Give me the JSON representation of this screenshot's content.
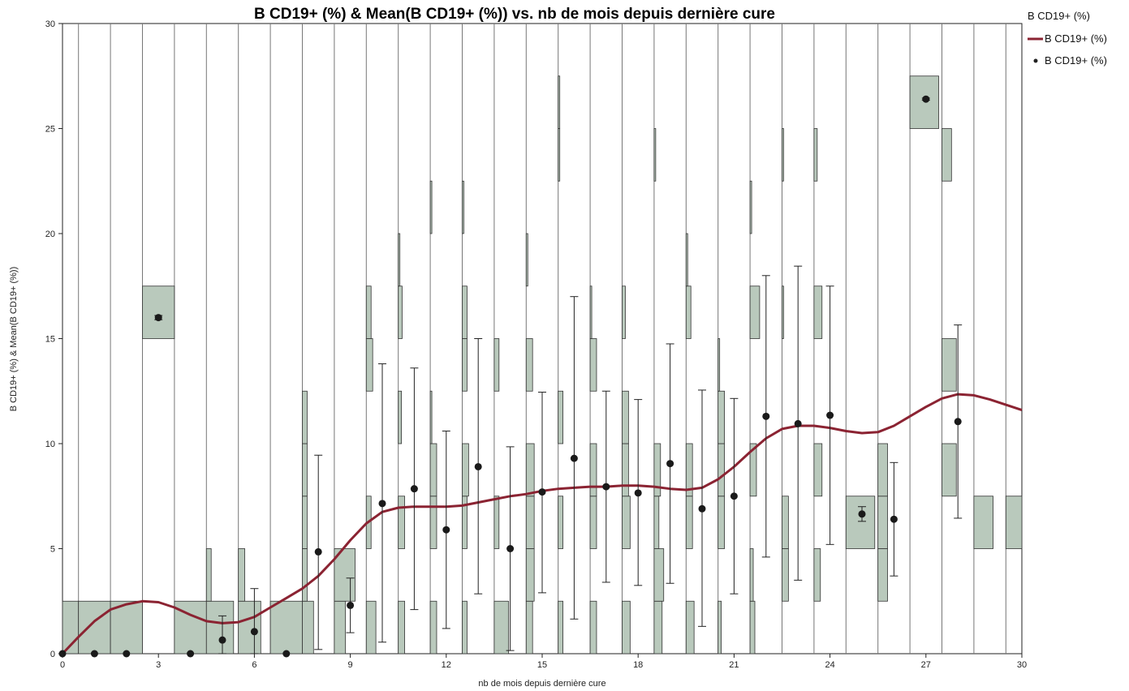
{
  "chart_data": {
    "type": "line",
    "title": "B CD19+ (%) & Mean(B CD19+ (%)) vs. nb de mois depuis dernière cure",
    "xlabel": "nb de mois depuis dernière cure",
    "ylabel": "B CD19+ (%) & Mean(B CD19+ (%))",
    "xlim": [
      0,
      30
    ],
    "ylim": [
      0,
      30
    ],
    "x_ticks": [
      "0",
      "3",
      "6",
      "9",
      "12",
      "15",
      "18",
      "21",
      "24",
      "27",
      "30"
    ],
    "y_ticks": [
      "0",
      "5",
      "10",
      "15",
      "20",
      "25",
      "30"
    ],
    "legend": {
      "title": "B CD19+ (%)",
      "items": [
        {
          "label": "B CD19+ (%)",
          "marker": "line",
          "color": "#8b2332"
        },
        {
          "label": "B CD19+ (%)",
          "marker": "dot",
          "color": "#222222"
        }
      ]
    },
    "colors": {
      "bar_fill": "#b9c9bc",
      "bar_stroke": "#333333",
      "smoother": "#8b2332",
      "mean": "#1a1a1a"
    },
    "histogram_bins": [
      {
        "x": 0,
        "bins": [
          [
            0,
            2.5,
            1
          ]
        ]
      },
      {
        "x": 1,
        "bins": [
          [
            0,
            2.5,
            1
          ]
        ]
      },
      {
        "x": 2,
        "bins": [
          [
            0,
            2.5,
            1
          ]
        ]
      },
      {
        "x": 3,
        "bins": [
          [
            15,
            17.5,
            1
          ]
        ]
      },
      {
        "x": 4,
        "bins": [
          [
            0,
            2.5,
            1
          ]
        ]
      },
      {
        "x": 5,
        "bins": [
          [
            0,
            2.5,
            0.85
          ],
          [
            2.5,
            5,
            0.15
          ]
        ]
      },
      {
        "x": 6,
        "bins": [
          [
            0,
            2.5,
            0.7
          ],
          [
            2.5,
            5,
            0.2
          ]
        ]
      },
      {
        "x": 7,
        "bins": [
          [
            0,
            2.5,
            1
          ]
        ]
      },
      {
        "x": 8,
        "bins": [
          [
            0,
            2.5,
            0.35
          ],
          [
            2.5,
            5,
            0.15
          ],
          [
            5,
            7.5,
            0.15
          ],
          [
            7.5,
            10,
            0.15
          ],
          [
            10,
            12.5,
            0.15
          ]
        ]
      },
      {
        "x": 9,
        "bins": [
          [
            0,
            2.5,
            0.35
          ],
          [
            2.5,
            5,
            0.65
          ]
        ]
      },
      {
        "x": 10,
        "bins": [
          [
            0,
            2.5,
            0.3
          ],
          [
            5,
            7.5,
            0.15
          ],
          [
            12.5,
            15,
            0.2
          ],
          [
            15,
            17.5,
            0.15
          ]
        ]
      },
      {
        "x": 11,
        "bins": [
          [
            0,
            2.5,
            0.2
          ],
          [
            5,
            7.5,
            0.2
          ],
          [
            10,
            12.5,
            0.1
          ],
          [
            15,
            17.5,
            0.12
          ],
          [
            17.5,
            20,
            0.05
          ]
        ]
      },
      {
        "x": 12,
        "bins": [
          [
            0,
            2.5,
            0.2
          ],
          [
            5,
            7.5,
            0.2
          ],
          [
            7.5,
            10,
            0.2
          ],
          [
            10,
            12.5,
            0.05
          ],
          [
            20,
            22.5,
            0.05
          ]
        ]
      },
      {
        "x": 13,
        "bins": [
          [
            0,
            2.5,
            0.15
          ],
          [
            5,
            7.5,
            0.15
          ],
          [
            7.5,
            10,
            0.2
          ],
          [
            12.5,
            15,
            0.15
          ],
          [
            15,
            17.5,
            0.15
          ],
          [
            20,
            22.5,
            0.05
          ]
        ]
      },
      {
        "x": 14,
        "bins": [
          [
            0,
            2.5,
            0.45
          ],
          [
            5,
            7.5,
            0.15
          ],
          [
            12.5,
            15,
            0.15
          ]
        ]
      },
      {
        "x": 15,
        "bins": [
          [
            0,
            2.5,
            0.2
          ],
          [
            2.5,
            5,
            0.25
          ],
          [
            5,
            7.5,
            0.25
          ],
          [
            7.5,
            10,
            0.25
          ],
          [
            12.5,
            15,
            0.2
          ],
          [
            17.5,
            20,
            0.05
          ]
        ]
      },
      {
        "x": 16,
        "bins": [
          [
            0,
            2.5,
            0.15
          ],
          [
            5,
            7.5,
            0.15
          ],
          [
            10,
            12.5,
            0.15
          ],
          [
            22.5,
            25,
            0.05
          ],
          [
            25,
            27.5,
            0.05
          ]
        ]
      },
      {
        "x": 17,
        "bins": [
          [
            0,
            2.5,
            0.2
          ],
          [
            5,
            7.5,
            0.2
          ],
          [
            7.5,
            10,
            0.2
          ],
          [
            12.5,
            15,
            0.2
          ],
          [
            15,
            17.5,
            0.05
          ]
        ]
      },
      {
        "x": 18,
        "bins": [
          [
            0,
            2.5,
            0.25
          ],
          [
            5,
            7.5,
            0.25
          ],
          [
            7.5,
            10,
            0.2
          ],
          [
            10,
            12.5,
            0.2
          ],
          [
            15,
            17.5,
            0.1
          ]
        ]
      },
      {
        "x": 19,
        "bins": [
          [
            0,
            2.5,
            0.25
          ],
          [
            2.5,
            5,
            0.3
          ],
          [
            5,
            7.5,
            0.15
          ],
          [
            7.5,
            10,
            0.2
          ],
          [
            22.5,
            25,
            0.05
          ]
        ]
      },
      {
        "x": 20,
        "bins": [
          [
            0,
            2.5,
            0.25
          ],
          [
            5,
            7.5,
            0.2
          ],
          [
            7.5,
            10,
            0.2
          ],
          [
            15,
            17.5,
            0.15
          ],
          [
            17.5,
            20,
            0.05
          ]
        ]
      },
      {
        "x": 21,
        "bins": [
          [
            0,
            2.5,
            0.1
          ],
          [
            5,
            7.5,
            0.2
          ],
          [
            7.5,
            10,
            0.2
          ],
          [
            10,
            12.5,
            0.2
          ],
          [
            12.5,
            15,
            0.05
          ]
        ]
      },
      {
        "x": 22,
        "bins": [
          [
            0,
            2.5,
            0.15
          ],
          [
            2.5,
            5,
            0.1
          ],
          [
            7.5,
            10,
            0.2
          ],
          [
            15,
            17.5,
            0.3
          ],
          [
            20,
            22.5,
            0.05
          ]
        ]
      },
      {
        "x": 23,
        "bins": [
          [
            2.5,
            5,
            0.2
          ],
          [
            5,
            7.5,
            0.2
          ],
          [
            15,
            17.5,
            0.05
          ],
          [
            22.5,
            25,
            0.05
          ]
        ]
      },
      {
        "x": 24,
        "bins": [
          [
            2.5,
            5,
            0.2
          ],
          [
            7.5,
            10,
            0.25
          ],
          [
            15,
            17.5,
            0.25
          ],
          [
            22.5,
            25,
            0.1
          ]
        ]
      },
      {
        "x": 25,
        "bins": [
          [
            5,
            7.5,
            0.9
          ]
        ]
      },
      {
        "x": 26,
        "bins": [
          [
            2.5,
            5,
            0.3
          ],
          [
            5,
            7.5,
            0.3
          ],
          [
            7.5,
            10,
            0.3
          ]
        ]
      },
      {
        "x": 27,
        "bins": [
          [
            25,
            27.5,
            0.9
          ]
        ]
      },
      {
        "x": 28,
        "bins": [
          [
            7.5,
            10,
            0.45
          ],
          [
            12.5,
            15,
            0.45
          ],
          [
            22.5,
            25,
            0.3
          ]
        ]
      },
      {
        "x": 29,
        "bins": [
          [
            5,
            7.5,
            0.6
          ]
        ]
      },
      {
        "x": 30,
        "bins": [
          [
            5,
            7.5,
            0.6
          ]
        ]
      }
    ],
    "means": [
      {
        "x": 0,
        "y": 0.0
      },
      {
        "x": 1,
        "y": 0.0
      },
      {
        "x": 2,
        "y": 0.0
      },
      {
        "x": 3,
        "y": 16.0,
        "err": [
          15.9,
          16.1
        ]
      },
      {
        "x": 4,
        "y": 0.0
      },
      {
        "x": 5,
        "y": 0.65,
        "err": [
          0.0,
          1.8
        ]
      },
      {
        "x": 6,
        "y": 1.05,
        "err": [
          0.0,
          3.1
        ]
      },
      {
        "x": 7,
        "y": 0.0
      },
      {
        "x": 8,
        "y": 4.85,
        "err": [
          0.2,
          9.45
        ]
      },
      {
        "x": 9,
        "y": 2.3,
        "err": [
          1.0,
          3.6
        ]
      },
      {
        "x": 10,
        "y": 7.15,
        "err": [
          0.55,
          13.8
        ]
      },
      {
        "x": 11,
        "y": 7.85,
        "err": [
          2.1,
          13.6
        ]
      },
      {
        "x": 12,
        "y": 5.9,
        "err": [
          1.2,
          10.6
        ]
      },
      {
        "x": 13,
        "y": 8.9,
        "err": [
          2.85,
          15.0
        ]
      },
      {
        "x": 14,
        "y": 5.0,
        "err": [
          0.15,
          9.85
        ]
      },
      {
        "x": 15,
        "y": 7.7,
        "err": [
          2.9,
          12.45
        ]
      },
      {
        "x": 16,
        "y": 9.3,
        "err": [
          1.65,
          17.0
        ]
      },
      {
        "x": 17,
        "y": 7.95,
        "err": [
          3.4,
          12.5
        ]
      },
      {
        "x": 18,
        "y": 7.65,
        "err": [
          3.25,
          12.1
        ]
      },
      {
        "x": 19,
        "y": 9.05,
        "err": [
          3.35,
          14.75
        ]
      },
      {
        "x": 20,
        "y": 6.9,
        "err": [
          1.3,
          12.55
        ]
      },
      {
        "x": 21,
        "y": 7.5,
        "err": [
          2.85,
          12.15
        ]
      },
      {
        "x": 22,
        "y": 11.3,
        "err": [
          4.6,
          18.0
        ]
      },
      {
        "x": 23,
        "y": 10.95,
        "err": [
          3.5,
          18.45
        ]
      },
      {
        "x": 24,
        "y": 11.35,
        "err": [
          5.2,
          17.5
        ]
      },
      {
        "x": 25,
        "y": 6.65,
        "err": [
          6.3,
          7.0
        ]
      },
      {
        "x": 26,
        "y": 6.4,
        "err": [
          3.7,
          9.1
        ]
      },
      {
        "x": 27,
        "y": 26.4,
        "err": [
          26.35,
          26.45
        ]
      },
      {
        "x": 28,
        "y": 11.05,
        "err": [
          6.45,
          15.65
        ]
      }
    ],
    "smoother": [
      {
        "x": 0,
        "y": 0.0
      },
      {
        "x": 0.5,
        "y": 0.8
      },
      {
        "x": 1,
        "y": 1.55
      },
      {
        "x": 1.5,
        "y": 2.1
      },
      {
        "x": 2,
        "y": 2.35
      },
      {
        "x": 2.5,
        "y": 2.5
      },
      {
        "x": 3,
        "y": 2.45
      },
      {
        "x": 3.5,
        "y": 2.2
      },
      {
        "x": 4,
        "y": 1.85
      },
      {
        "x": 4.5,
        "y": 1.55
      },
      {
        "x": 5,
        "y": 1.45
      },
      {
        "x": 5.5,
        "y": 1.5
      },
      {
        "x": 6,
        "y": 1.75
      },
      {
        "x": 6.5,
        "y": 2.2
      },
      {
        "x": 7,
        "y": 2.65
      },
      {
        "x": 7.5,
        "y": 3.1
      },
      {
        "x": 8,
        "y": 3.7
      },
      {
        "x": 8.5,
        "y": 4.5
      },
      {
        "x": 9,
        "y": 5.4
      },
      {
        "x": 9.5,
        "y": 6.2
      },
      {
        "x": 10,
        "y": 6.75
      },
      {
        "x": 10.5,
        "y": 6.95
      },
      {
        "x": 11,
        "y": 7.0
      },
      {
        "x": 11.5,
        "y": 7.0
      },
      {
        "x": 12,
        "y": 7.0
      },
      {
        "x": 12.5,
        "y": 7.05
      },
      {
        "x": 13,
        "y": 7.2
      },
      {
        "x": 13.5,
        "y": 7.35
      },
      {
        "x": 14,
        "y": 7.5
      },
      {
        "x": 14.5,
        "y": 7.6
      },
      {
        "x": 15,
        "y": 7.75
      },
      {
        "x": 15.5,
        "y": 7.85
      },
      {
        "x": 16,
        "y": 7.9
      },
      {
        "x": 16.5,
        "y": 7.95
      },
      {
        "x": 17,
        "y": 7.95
      },
      {
        "x": 17.5,
        "y": 8.0
      },
      {
        "x": 18,
        "y": 8.0
      },
      {
        "x": 18.5,
        "y": 7.95
      },
      {
        "x": 19,
        "y": 7.85
      },
      {
        "x": 19.5,
        "y": 7.8
      },
      {
        "x": 20,
        "y": 7.9
      },
      {
        "x": 20.5,
        "y": 8.3
      },
      {
        "x": 21,
        "y": 8.9
      },
      {
        "x": 21.5,
        "y": 9.6
      },
      {
        "x": 22,
        "y": 10.25
      },
      {
        "x": 22.5,
        "y": 10.7
      },
      {
        "x": 23,
        "y": 10.85
      },
      {
        "x": 23.5,
        "y": 10.85
      },
      {
        "x": 24,
        "y": 10.75
      },
      {
        "x": 24.5,
        "y": 10.6
      },
      {
        "x": 25,
        "y": 10.5
      },
      {
        "x": 25.5,
        "y": 10.55
      },
      {
        "x": 26,
        "y": 10.85
      },
      {
        "x": 26.5,
        "y": 11.3
      },
      {
        "x": 27,
        "y": 11.75
      },
      {
        "x": 27.5,
        "y": 12.15
      },
      {
        "x": 28,
        "y": 12.35
      },
      {
        "x": 28.5,
        "y": 12.3
      },
      {
        "x": 29,
        "y": 12.1
      },
      {
        "x": 29.5,
        "y": 11.85
      },
      {
        "x": 30,
        "y": 11.6
      }
    ]
  }
}
